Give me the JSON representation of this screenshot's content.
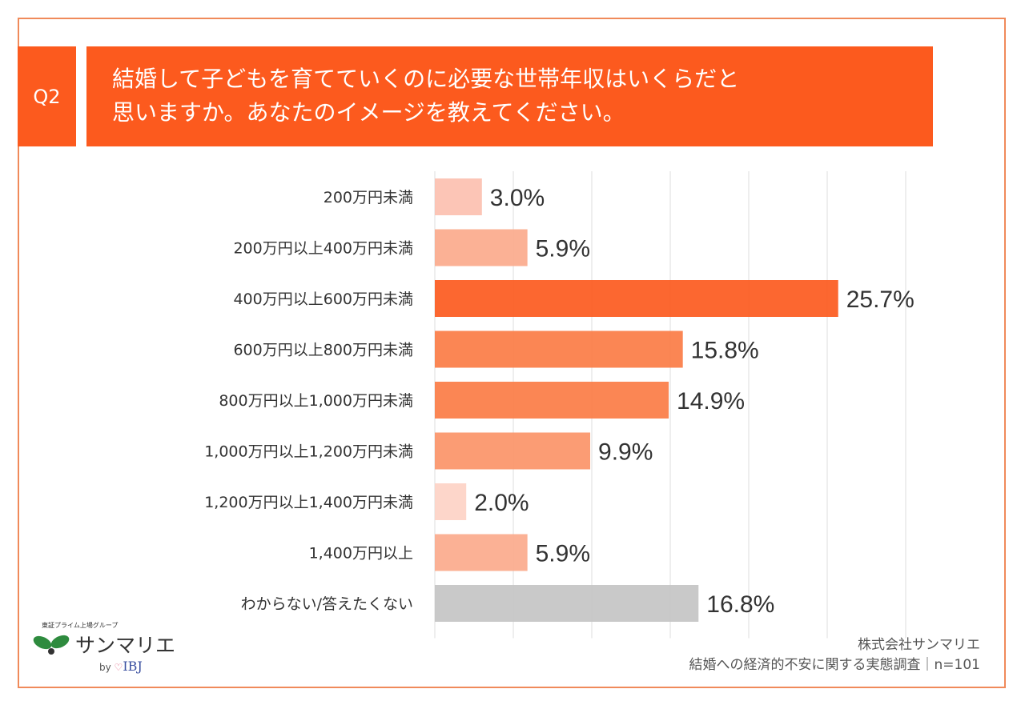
{
  "question": {
    "number": "Q2",
    "lines": [
      "結婚して子どもを育てていくのに必要な世帯年収はいくらだと",
      "思いますか。あなたのイメージを教えてください。"
    ]
  },
  "chart_data": {
    "type": "bar",
    "orientation": "horizontal",
    "categories": [
      "200万円未満",
      "200万円以上400万円未満",
      "400万円以上600万円未満",
      "600万円以上800万円未満",
      "800万円以上1,000万円未満",
      "1,000万円以上1,200万円未満",
      "1,200万円以上1,400万円未満",
      "1,400万円以上",
      "わからない/答えたくない"
    ],
    "values": [
      3.0,
      5.9,
      25.7,
      15.8,
      14.9,
      9.9,
      2.0,
      5.9,
      16.8
    ],
    "value_labels": [
      "3.0%",
      "5.9%",
      "25.7%",
      "15.8%",
      "14.9%",
      "9.9%",
      "2.0%",
      "5.9%",
      "16.8%"
    ],
    "colors": [
      "#fcc0b0",
      "#fbaa8c",
      "#fc5a1e",
      "#fb7c45",
      "#fb7c45",
      "#fb9468",
      "#fdd3c6",
      "#fbaa8c",
      "#c4c4c4"
    ],
    "xlim": [
      0,
      30
    ],
    "grid": true,
    "grid_step": 5
  },
  "logo": {
    "tagline": "東証プライム上場グループ",
    "name": "サンマリエ",
    "by": "by",
    "brand": "IBJ"
  },
  "source": {
    "company": "株式会社サンマリエ",
    "survey": "結婚への経済的不安に関する実態調査｜n=101"
  }
}
